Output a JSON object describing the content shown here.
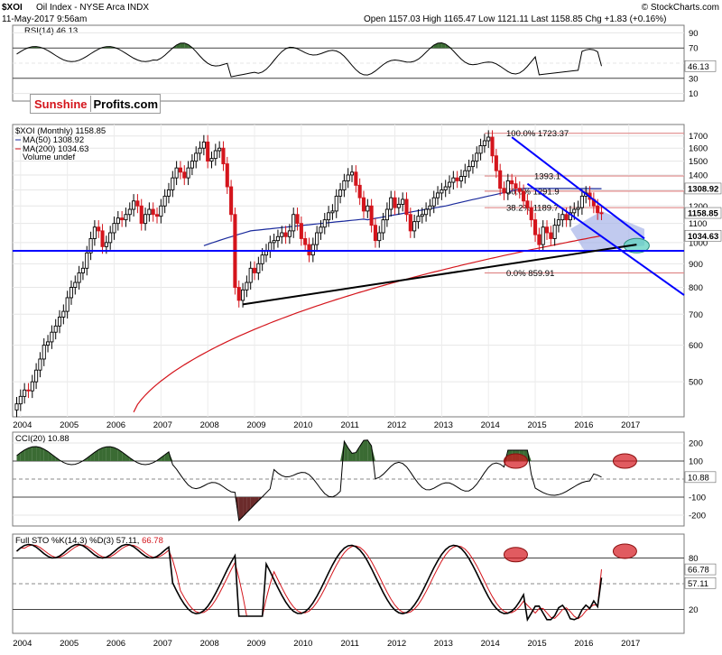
{
  "header": {
    "symbol": "$XOI",
    "name": "Oil Index - NYSE Arca INDX",
    "date": "11-May-2017 9:56am",
    "quote": "Open 1157.03  High 1165.47  Low 1121.11  Last 1158.85  Chg +1.83 (+0.16%)",
    "copyright": "© StockCharts.com"
  },
  "logo": {
    "part1": "Sunshine",
    "part2": "Profits.com"
  },
  "legend": {
    "price": "$XOI (Monthly) 1158.85",
    "ma50": "MA(50) 1308.92",
    "ma200": "MA(200) 1034.63",
    "volume": "Volume undef"
  },
  "colors": {
    "up": "#000000",
    "down": "#d4151c",
    "ma50": "#1a2a9c",
    "ma200": "#d4151c",
    "rsi_fill": "#3a6b33",
    "cci_neg_fill": "#6b2b2b",
    "trend": "#0000ff",
    "channel_fill": "#a6b4e8",
    "ellipse": "#d4151c",
    "ellipse_green": "#5fd1c0",
    "sto_k": "#000000",
    "sto_d": "#d4151c"
  },
  "x_axis_years": [
    "2004",
    "2005",
    "2006",
    "2007",
    "2008",
    "2009",
    "2010",
    "2011",
    "2012",
    "2013",
    "2014",
    "2015",
    "2016",
    "2017"
  ],
  "rsi": {
    "title": "RSI(14) 46.13",
    "ticks": [
      "90",
      "70",
      "50",
      "30",
      "10"
    ],
    "last_label": "46.13"
  },
  "price_panel": {
    "ticks": [
      "1700",
      "1600",
      "1500",
      "1400",
      "1300",
      "1200",
      "1100",
      "1000",
      "900",
      "800",
      "700",
      "600",
      "500"
    ],
    "last_label": "1158.85",
    "ma50_label": "1308.92",
    "ma200_label": "1034.63",
    "fib_labels": [
      "100.0% 1723.37",
      "1393.1",
      "50.0% 1291.9",
      "38.2% 1189.7",
      "0.0% 859.91"
    ]
  },
  "cci": {
    "title": "CCI(20) 10.88",
    "ticks": [
      "200",
      "100",
      "-100",
      "-200"
    ],
    "last_label": "10.88"
  },
  "sto": {
    "title_black": "Full STO %K(14,3) %D(3) 57.11, ",
    "title_red": "66.78",
    "ticks": [
      "80",
      "50",
      "20"
    ],
    "k_label": "57.11",
    "d_label": "66.78"
  },
  "chart_data": {
    "type": "candlestick",
    "frequency": "monthly",
    "period_start": "2003-12",
    "title": "$XOI Oil Index - NYSE Arca INDX",
    "y_scale": "log",
    "ylim": [
      420,
      1800
    ],
    "closes": [
      448,
      465,
      480,
      478,
      500,
      530,
      560,
      600,
      610,
      640,
      660,
      690,
      710,
      760,
      800,
      820,
      860,
      880,
      950,
      1020,
      1080,
      1060,
      980,
      1000,
      1050,
      1100,
      1130,
      1120,
      1150,
      1180,
      1230,
      1200,
      1100,
      1150,
      1180,
      1150,
      1140,
      1200,
      1260,
      1300,
      1380,
      1450,
      1420,
      1380,
      1450,
      1500,
      1560,
      1600,
      1650,
      1500,
      1520,
      1580,
      1600,
      1480,
      1320,
      1150,
      800,
      750,
      790,
      820,
      880,
      860,
      900,
      940,
      960,
      1000,
      1010,
      1030,
      1050,
      1030,
      1060,
      1150,
      1100,
      1020,
      990,
      940,
      990,
      1050,
      1080,
      1120,
      1160,
      1170,
      1260,
      1300,
      1360,
      1400,
      1420,
      1330,
      1250,
      1170,
      1200,
      1090,
      1010,
      1050,
      1120,
      1180,
      1250,
      1190,
      1210,
      1240,
      1150,
      1060,
      1110,
      1140,
      1150,
      1180,
      1200,
      1250,
      1280,
      1300,
      1320,
      1350,
      1380,
      1360,
      1390,
      1430,
      1460,
      1500,
      1560,
      1620,
      1660,
      1690,
      1540,
      1430,
      1310,
      1280,
      1360,
      1340,
      1310,
      1290,
      1230,
      1190,
      1120,
      1040,
      990,
      1080,
      1050,
      1020,
      1090,
      1120,
      1150,
      1120,
      1160,
      1180,
      1190,
      1260,
      1280,
      1240,
      1200,
      1160,
      1158.85
    ],
    "indicators": {
      "rsi14": 46.13,
      "ma50": 1308.92,
      "ma200": 1034.63,
      "cci20": 10.88,
      "sto_k": 57.11,
      "sto_d": 66.78
    },
    "fibonacci": [
      {
        "level": "100.0%",
        "value": 1723.37
      },
      {
        "level": "",
        "value": 1393.1
      },
      {
        "level": "50.0%",
        "value": 1291.9
      },
      {
        "level": "38.2%",
        "value": 1189.7
      },
      {
        "level": "0.0%",
        "value": 859.91
      }
    ],
    "support_line": 960
  }
}
